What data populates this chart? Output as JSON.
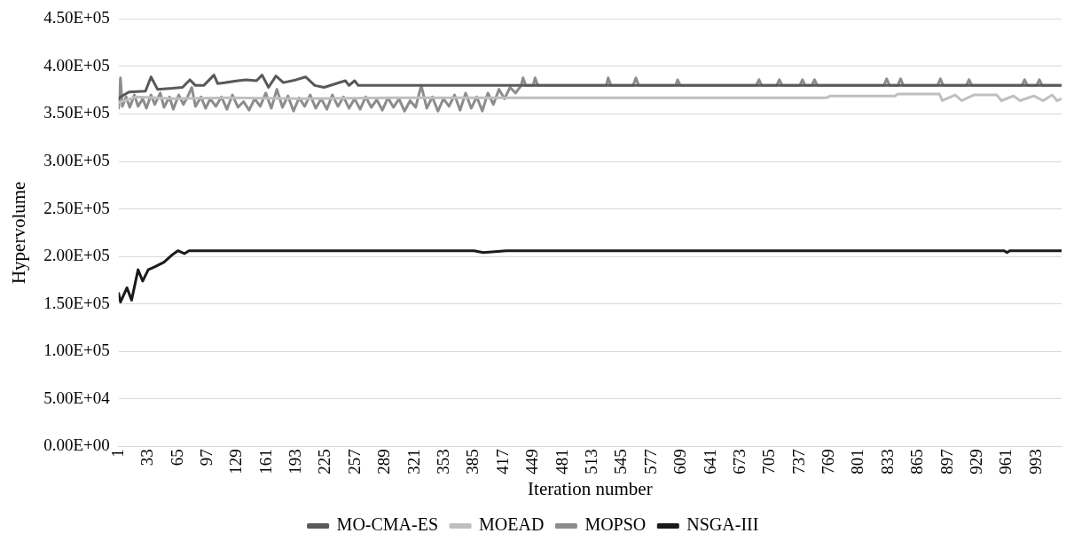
{
  "chart_data": {
    "type": "line",
    "xlabel": "Iteration number",
    "ylabel": "Hypervolume",
    "xlim": [
      1,
      1020
    ],
    "xticks": [
      1,
      33,
      65,
      97,
      129,
      161,
      193,
      225,
      257,
      289,
      321,
      353,
      385,
      417,
      449,
      481,
      513,
      545,
      577,
      609,
      641,
      673,
      705,
      737,
      769,
      801,
      833,
      865,
      897,
      929,
      961,
      993
    ],
    "ylim": [
      0,
      450000
    ],
    "yticks": [
      {
        "value": 0,
        "label": "0.00E+00"
      },
      {
        "value": 50000,
        "label": "5.00E+04"
      },
      {
        "value": 100000,
        "label": "1.00E+05"
      },
      {
        "value": 150000,
        "label": "1.50E+05"
      },
      {
        "value": 200000,
        "label": "2.00E+05"
      },
      {
        "value": 250000,
        "label": "2.50E+05"
      },
      {
        "value": 300000,
        "label": "3.00E+05"
      },
      {
        "value": 350000,
        "label": "3.50E+05"
      },
      {
        "value": 400000,
        "label": "4.00E+05"
      },
      {
        "value": 450000,
        "label": "4.50E+05"
      }
    ],
    "grid": "y",
    "legend": "bottom",
    "marker": "none",
    "line_style": "solid",
    "series": [
      {
        "name": "MO-CMA-ES",
        "color": "#595959",
        "x": [
          1,
          3,
          12,
          30,
          36,
          43,
          59,
          70,
          78,
          84,
          93,
          104,
          108,
          116,
          130,
          139,
          150,
          156,
          163,
          171,
          179,
          193,
          203,
          213,
          223,
          246,
          250,
          256,
          260,
          1020
        ],
        "values": [
          366000,
          368000,
          373000,
          374000,
          389000,
          376000,
          377000,
          378000,
          386000,
          380000,
          380000,
          391000,
          382000,
          383000,
          385000,
          386000,
          385000,
          391000,
          378000,
          390000,
          383000,
          386000,
          389000,
          380000,
          378000,
          385000,
          380000,
          385000,
          380000,
          380000
        ]
      },
      {
        "name": "MOEAD",
        "color": "#bfbfbf",
        "x": [
          1,
          20,
          60,
          120,
          200,
          300,
          430,
          766,
          770,
          840,
          843,
          888,
          891,
          905,
          912,
          925,
          950,
          955,
          968,
          975,
          990,
          1000,
          1010,
          1015,
          1020
        ],
        "values": [
          362000,
          368000,
          366000,
          367000,
          366000,
          367000,
          367000,
          367000,
          369000,
          369000,
          371000,
          371000,
          364000,
          370000,
          364000,
          370000,
          370000,
          364000,
          369000,
          364000,
          369000,
          364000,
          370000,
          364000,
          366000
        ]
      },
      {
        "name": "MOPSO",
        "color": "#8c8c8c",
        "x": [
          1,
          3,
          5,
          9,
          13,
          18,
          22,
          27,
          31,
          36,
          40,
          46,
          50,
          56,
          60,
          66,
          71,
          75,
          80,
          84,
          90,
          95,
          100,
          106,
          112,
          118,
          124,
          130,
          136,
          142,
          148,
          154,
          160,
          166,
          172,
          178,
          184,
          190,
          196,
          202,
          208,
          214,
          220,
          226,
          232,
          238,
          244,
          250,
          256,
          262,
          268,
          274,
          280,
          286,
          292,
          298,
          304,
          310,
          316,
          322,
          328,
          334,
          340,
          346,
          352,
          358,
          364,
          370,
          376,
          382,
          388,
          394,
          400,
          406,
          412,
          418,
          424,
          430,
          436,
          438,
          441,
          449,
          451,
          454,
          528,
          530,
          533,
          557,
          560,
          563,
          603,
          605,
          608,
          690,
          693,
          696,
          712,
          715,
          718,
          737,
          740,
          743,
          750,
          753,
          756,
          828,
          831,
          834,
          843,
          846,
          849,
          886,
          889,
          892,
          917,
          920,
          923,
          977,
          980,
          983,
          993,
          996,
          999,
          1020
        ],
        "values": [
          356000,
          388000,
          358000,
          368000,
          357000,
          370000,
          358000,
          366000,
          356000,
          370000,
          360000,
          372000,
          357000,
          368000,
          355000,
          370000,
          360000,
          367000,
          378000,
          358000,
          368000,
          356000,
          366000,
          358000,
          368000,
          355000,
          370000,
          357000,
          363000,
          354000,
          366000,
          358000,
          372000,
          356000,
          376000,
          357000,
          369000,
          353000,
          367000,
          358000,
          370000,
          356000,
          366000,
          355000,
          370000,
          358000,
          368000,
          356000,
          366000,
          355000,
          368000,
          357000,
          365000,
          354000,
          367000,
          357000,
          366000,
          353000,
          364000,
          357000,
          380000,
          356000,
          368000,
          353000,
          366000,
          358000,
          370000,
          354000,
          372000,
          356000,
          368000,
          353000,
          372000,
          360000,
          376000,
          366000,
          378000,
          372000,
          380000,
          388000,
          380000,
          380000,
          388000,
          380000,
          380000,
          388000,
          380000,
          380000,
          388000,
          380000,
          380000,
          386000,
          380000,
          380000,
          386000,
          380000,
          380000,
          386000,
          380000,
          380000,
          386000,
          380000,
          380000,
          386000,
          380000,
          380000,
          387000,
          380000,
          380000,
          387000,
          380000,
          380000,
          387000,
          380000,
          380000,
          386000,
          380000,
          380000,
          386000,
          380000,
          380000,
          386000,
          380000,
          380000
        ]
      },
      {
        "name": "NSGA-III",
        "color": "#1a1a1a",
        "x": [
          1,
          3,
          10,
          15,
          22,
          27,
          33,
          40,
          50,
          58,
          65,
          72,
          77,
          385,
          395,
          420,
          958,
          961,
          964,
          1020
        ],
        "values": [
          161000,
          152000,
          167000,
          154000,
          186000,
          174000,
          186000,
          189000,
          194000,
          201000,
          206000,
          203000,
          206000,
          206000,
          204000,
          206000,
          206000,
          204000,
          206000,
          206000
        ]
      }
    ]
  }
}
